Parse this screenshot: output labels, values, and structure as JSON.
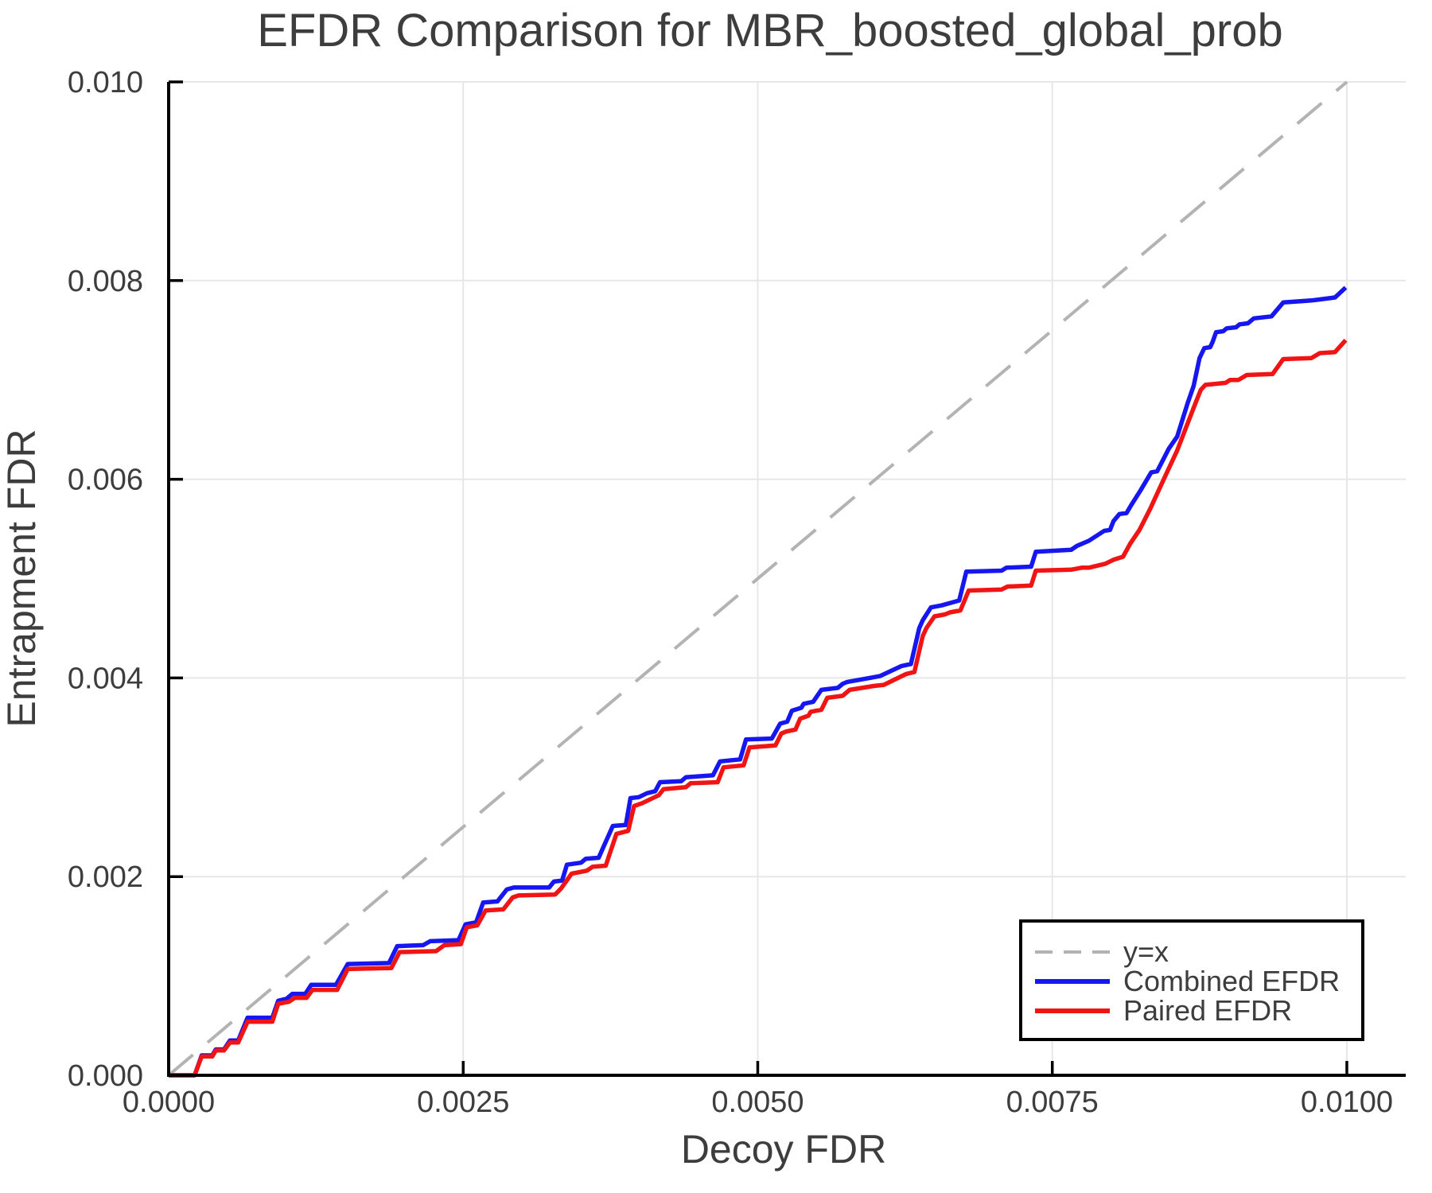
{
  "figure": {
    "background": "#ffffff",
    "text_color": "#3d3d3d",
    "grid_color": "#e7e7e7",
    "spine_color": "#000000"
  },
  "chart_data": {
    "type": "line",
    "title": "EFDR Comparison for MBR_boosted_global_prob",
    "xlabel": "Decoy FDR",
    "ylabel": "Entrapment FDR",
    "xlim": [
      0,
      0.0105
    ],
    "ylim": [
      0,
      0.01
    ],
    "grid": true,
    "legend_position": "lower right",
    "x_ticks": [
      0.0,
      0.0025,
      0.005,
      0.0075,
      0.01
    ],
    "x_tick_labels": [
      "0.0000",
      "0.0025",
      "0.0050",
      "0.0075",
      "0.0100"
    ],
    "y_ticks": [
      0.0,
      0.002,
      0.004,
      0.006,
      0.008,
      0.01
    ],
    "y_tick_labels": [
      "0.000",
      "0.002",
      "0.004",
      "0.006",
      "0.008",
      "0.010"
    ],
    "reference_line": {
      "label": "y=x",
      "color": "#b3b3b3",
      "style": "dashed",
      "from": [
        0,
        0
      ],
      "to": [
        0.01,
        0.01
      ]
    },
    "series": [
      {
        "name": "Combined EFDR",
        "color": "#1616f0",
        "points": [
          [
            0.0,
            0.0
          ],
          [
            0.00022,
            0.0
          ],
          [
            0.00028,
            0.0002
          ],
          [
            0.00037,
            0.0002
          ],
          [
            0.0004,
            0.00026
          ],
          [
            0.00047,
            0.00026
          ],
          [
            0.00052,
            0.00035
          ],
          [
            0.00059,
            0.00035
          ],
          [
            0.00067,
            0.00058
          ],
          [
            0.00088,
            0.00058
          ],
          [
            0.00093,
            0.00075
          ],
          [
            0.001,
            0.00077
          ],
          [
            0.00105,
            0.00082
          ],
          [
            0.00116,
            0.00082
          ],
          [
            0.00121,
            0.00091
          ],
          [
            0.00142,
            0.00091
          ],
          [
            0.00152,
            0.00112
          ],
          [
            0.00187,
            0.00113
          ],
          [
            0.00194,
            0.0013
          ],
          [
            0.00216,
            0.00131
          ],
          [
            0.00222,
            0.00135
          ],
          [
            0.00246,
            0.00136
          ],
          [
            0.00252,
            0.00152
          ],
          [
            0.00261,
            0.00154
          ],
          [
            0.00267,
            0.00174
          ],
          [
            0.00279,
            0.00175
          ],
          [
            0.00287,
            0.00187
          ],
          [
            0.00293,
            0.00189
          ],
          [
            0.00323,
            0.00189
          ],
          [
            0.00327,
            0.00195
          ],
          [
            0.00334,
            0.00196
          ],
          [
            0.00338,
            0.00212
          ],
          [
            0.0035,
            0.00214
          ],
          [
            0.00354,
            0.00218
          ],
          [
            0.00365,
            0.00219
          ],
          [
            0.00377,
            0.00251
          ],
          [
            0.00388,
            0.00252
          ],
          [
            0.00392,
            0.00279
          ],
          [
            0.00399,
            0.0028
          ],
          [
            0.00406,
            0.00284
          ],
          [
            0.00413,
            0.00286
          ],
          [
            0.00417,
            0.00295
          ],
          [
            0.00435,
            0.00296
          ],
          [
            0.00439,
            0.003
          ],
          [
            0.00462,
            0.00302
          ],
          [
            0.00468,
            0.00316
          ],
          [
            0.00485,
            0.00318
          ],
          [
            0.0049,
            0.00338
          ],
          [
            0.00512,
            0.00339
          ],
          [
            0.00519,
            0.00354
          ],
          [
            0.00525,
            0.00356
          ],
          [
            0.00529,
            0.00367
          ],
          [
            0.00537,
            0.0037
          ],
          [
            0.00539,
            0.00374
          ],
          [
            0.00547,
            0.00376
          ],
          [
            0.00554,
            0.00388
          ],
          [
            0.00568,
            0.0039
          ],
          [
            0.00572,
            0.00394
          ],
          [
            0.00576,
            0.00396
          ],
          [
            0.00595,
            0.004
          ],
          [
            0.00604,
            0.00402
          ],
          [
            0.00622,
            0.00412
          ],
          [
            0.0063,
            0.00414
          ],
          [
            0.00637,
            0.0045
          ],
          [
            0.0064,
            0.00458
          ],
          [
            0.00647,
            0.00471
          ],
          [
            0.00656,
            0.00473
          ],
          [
            0.00665,
            0.00476
          ],
          [
            0.00671,
            0.00478
          ],
          [
            0.00677,
            0.00507
          ],
          [
            0.00707,
            0.00508
          ],
          [
            0.00711,
            0.00511
          ],
          [
            0.00732,
            0.00512
          ],
          [
            0.00736,
            0.00527
          ],
          [
            0.00766,
            0.00529
          ],
          [
            0.00771,
            0.00533
          ],
          [
            0.00781,
            0.00538
          ],
          [
            0.00794,
            0.00548
          ],
          [
            0.00799,
            0.00549
          ],
          [
            0.00802,
            0.00558
          ],
          [
            0.00807,
            0.00565
          ],
          [
            0.00813,
            0.00566
          ],
          [
            0.00817,
            0.00574
          ],
          [
            0.00825,
            0.00589
          ],
          [
            0.00834,
            0.00607
          ],
          [
            0.00839,
            0.00608
          ],
          [
            0.00849,
            0.00631
          ],
          [
            0.00856,
            0.00643
          ],
          [
            0.00865,
            0.00677
          ],
          [
            0.0087,
            0.00694
          ],
          [
            0.00875,
            0.00722
          ],
          [
            0.00879,
            0.00732
          ],
          [
            0.00884,
            0.00733
          ],
          [
            0.00886,
            0.00738
          ],
          [
            0.00889,
            0.00748
          ],
          [
            0.00895,
            0.00749
          ],
          [
            0.00898,
            0.00752
          ],
          [
            0.00906,
            0.00753
          ],
          [
            0.00909,
            0.00756
          ],
          [
            0.00916,
            0.00757
          ],
          [
            0.00921,
            0.00762
          ],
          [
            0.00936,
            0.00764
          ],
          [
            0.00946,
            0.00778
          ],
          [
            0.0097,
            0.0078
          ],
          [
            0.00977,
            0.00781
          ],
          [
            0.0099,
            0.00783
          ],
          [
            0.00999,
            0.00793
          ]
        ]
      },
      {
        "name": "Paired EFDR",
        "color": "#f01414",
        "points": [
          [
            0.0,
            0.0
          ],
          [
            0.00022,
            0.0
          ],
          [
            0.00028,
            0.00019
          ],
          [
            0.00037,
            0.00019
          ],
          [
            0.0004,
            0.00025
          ],
          [
            0.00047,
            0.00025
          ],
          [
            0.00052,
            0.00033
          ],
          [
            0.00059,
            0.00033
          ],
          [
            0.00067,
            0.00054
          ],
          [
            0.00088,
            0.00054
          ],
          [
            0.00093,
            0.00072
          ],
          [
            0.00102,
            0.00074
          ],
          [
            0.00107,
            0.00078
          ],
          [
            0.00117,
            0.00078
          ],
          [
            0.00122,
            0.00086
          ],
          [
            0.00143,
            0.00086
          ],
          [
            0.00152,
            0.00107
          ],
          [
            0.00189,
            0.00108
          ],
          [
            0.00196,
            0.00124
          ],
          [
            0.00227,
            0.00125
          ],
          [
            0.00234,
            0.00131
          ],
          [
            0.00248,
            0.00132
          ],
          [
            0.00253,
            0.00149
          ],
          [
            0.00262,
            0.00151
          ],
          [
            0.00269,
            0.00166
          ],
          [
            0.00284,
            0.00167
          ],
          [
            0.00292,
            0.00179
          ],
          [
            0.00297,
            0.00181
          ],
          [
            0.00328,
            0.00182
          ],
          [
            0.00333,
            0.00188
          ],
          [
            0.00342,
            0.00203
          ],
          [
            0.00355,
            0.00206
          ],
          [
            0.0036,
            0.0021
          ],
          [
            0.00371,
            0.00211
          ],
          [
            0.0038,
            0.00243
          ],
          [
            0.0039,
            0.00246
          ],
          [
            0.00395,
            0.00271
          ],
          [
            0.00402,
            0.00274
          ],
          [
            0.00409,
            0.00278
          ],
          [
            0.00416,
            0.00282
          ],
          [
            0.0042,
            0.00288
          ],
          [
            0.00439,
            0.0029
          ],
          [
            0.00443,
            0.00294
          ],
          [
            0.00466,
            0.00295
          ],
          [
            0.00471,
            0.0031
          ],
          [
            0.00488,
            0.00312
          ],
          [
            0.00493,
            0.0033
          ],
          [
            0.00515,
            0.00332
          ],
          [
            0.0052,
            0.00344
          ],
          [
            0.00524,
            0.00346
          ],
          [
            0.00532,
            0.00348
          ],
          [
            0.00536,
            0.00359
          ],
          [
            0.00543,
            0.00362
          ],
          [
            0.00545,
            0.00366
          ],
          [
            0.00554,
            0.00368
          ],
          [
            0.00559,
            0.0038
          ],
          [
            0.00572,
            0.00382
          ],
          [
            0.00578,
            0.00388
          ],
          [
            0.00599,
            0.00392
          ],
          [
            0.00607,
            0.00393
          ],
          [
            0.00626,
            0.00404
          ],
          [
            0.00633,
            0.00406
          ],
          [
            0.0064,
            0.00442
          ],
          [
            0.00643,
            0.0045
          ],
          [
            0.0065,
            0.00462
          ],
          [
            0.00659,
            0.00464
          ],
          [
            0.00663,
            0.00466
          ],
          [
            0.00672,
            0.00468
          ],
          [
            0.00679,
            0.00488
          ],
          [
            0.00707,
            0.00489
          ],
          [
            0.00712,
            0.00492
          ],
          [
            0.00732,
            0.00493
          ],
          [
            0.00736,
            0.00508
          ],
          [
            0.00766,
            0.00509
          ],
          [
            0.00775,
            0.00511
          ],
          [
            0.00781,
            0.00511
          ],
          [
            0.00795,
            0.00515
          ],
          [
            0.00802,
            0.00519
          ],
          [
            0.0081,
            0.00522
          ],
          [
            0.00816,
            0.00535
          ],
          [
            0.00824,
            0.00549
          ],
          [
            0.00833,
            0.0057
          ],
          [
            0.00845,
            0.00601
          ],
          [
            0.00856,
            0.00629
          ],
          [
            0.0087,
            0.00672
          ],
          [
            0.00876,
            0.0069
          ],
          [
            0.0088,
            0.00695
          ],
          [
            0.00897,
            0.00697
          ],
          [
            0.00901,
            0.007
          ],
          [
            0.00908,
            0.007
          ],
          [
            0.00915,
            0.00705
          ],
          [
            0.00937,
            0.00706
          ],
          [
            0.00946,
            0.00721
          ],
          [
            0.0097,
            0.00722
          ],
          [
            0.00977,
            0.00727
          ],
          [
            0.0099,
            0.00728
          ],
          [
            0.00999,
            0.0074
          ]
        ]
      }
    ]
  },
  "legend": {
    "entries": [
      "y=x",
      "Combined EFDR",
      "Paired EFDR"
    ]
  }
}
